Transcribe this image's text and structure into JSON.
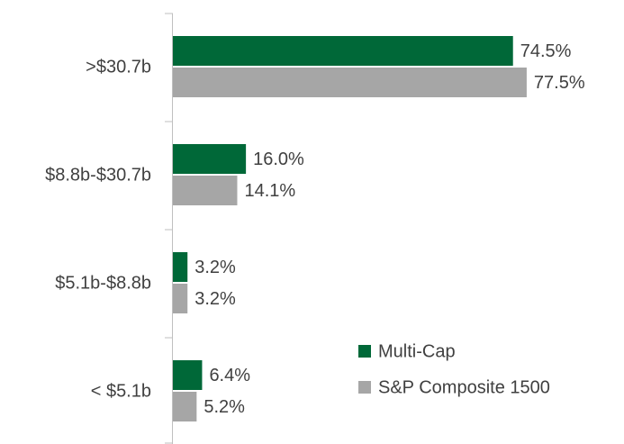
{
  "chart_data": {
    "type": "bar",
    "orientation": "horizontal",
    "categories": [
      ">$30.7b",
      "$8.8b-$30.7b",
      "$5.1b-$8.8b",
      "< $5.1b"
    ],
    "series": [
      {
        "name": "Multi-Cap",
        "color": "#006838",
        "values": [
          74.5,
          16.0,
          3.2,
          6.4
        ],
        "value_labels": [
          "74.5%",
          "16.0%",
          "3.2%",
          "6.4%"
        ]
      },
      {
        "name": "S&P Composite 1500",
        "color": "#a6a6a6",
        "values": [
          77.5,
          14.1,
          3.2,
          5.2
        ],
        "value_labels": [
          "77.5%",
          "14.1%",
          "3.2%",
          "5.2%"
        ]
      }
    ],
    "legend": "lower right"
  }
}
